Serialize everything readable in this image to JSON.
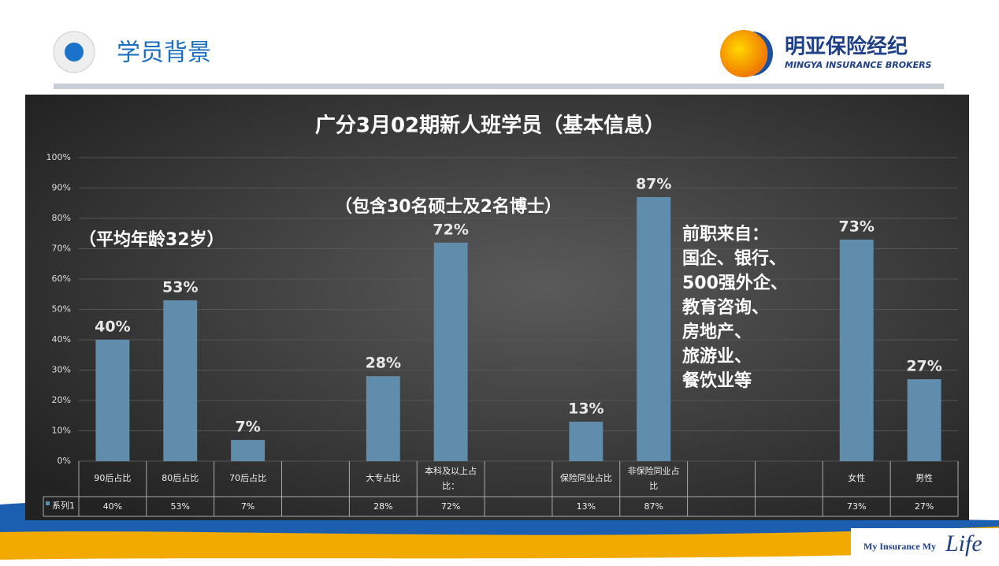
{
  "header": {
    "title": "学员背景",
    "logo_name": "明亚保险经纪",
    "logo_sub": "MINGYA INSURANCE BROKERS"
  },
  "footer": {
    "slogan": "My Insurance My",
    "slogan_script": "Life"
  },
  "chart_data": {
    "type": "bar",
    "title": "广分3月02期新人班学员（基本信息）",
    "annotations": {
      "age": "（平均年龄32岁）",
      "degree": "（包含30名硕士及2名博士）",
      "previous": [
        "前职来自：",
        "国企、银行、",
        "500强外企、",
        "教育咨询、",
        "房地产、",
        "旅游业、",
        "餐饮业等"
      ]
    },
    "categories": [
      "90后占比",
      "80后占比",
      "70后占比",
      null,
      "大专占比",
      "本科及以上占比：",
      null,
      "保险同业占比",
      "非保险同业占比",
      null,
      null,
      "女性",
      "男性"
    ],
    "series": [
      {
        "name": "系列1",
        "color": "#5f8dab",
        "values": [
          40,
          53,
          7,
          null,
          28,
          72,
          null,
          13,
          87,
          null,
          null,
          73,
          27
        ],
        "value_labels": [
          "40%",
          "53%",
          "7%",
          null,
          "28%",
          "72%",
          null,
          "13%",
          "87%",
          null,
          null,
          "73%",
          "27%"
        ]
      }
    ],
    "ylim": [
      0,
      100
    ],
    "yticks": [
      {
        "value": 0,
        "label": "0%"
      },
      {
        "value": 10,
        "label": "10%"
      },
      {
        "value": 20,
        "label": "20%"
      },
      {
        "value": 30,
        "label": "30%"
      },
      {
        "value": 40,
        "label": "40%"
      },
      {
        "value": 50,
        "label": "50%"
      },
      {
        "value": 60,
        "label": "60%"
      },
      {
        "value": 70,
        "label": "70%"
      },
      {
        "value": 80,
        "label": "80%"
      },
      {
        "value": 90,
        "label": "90%"
      },
      {
        "value": 100,
        "label": "100%"
      }
    ],
    "grid": true
  }
}
